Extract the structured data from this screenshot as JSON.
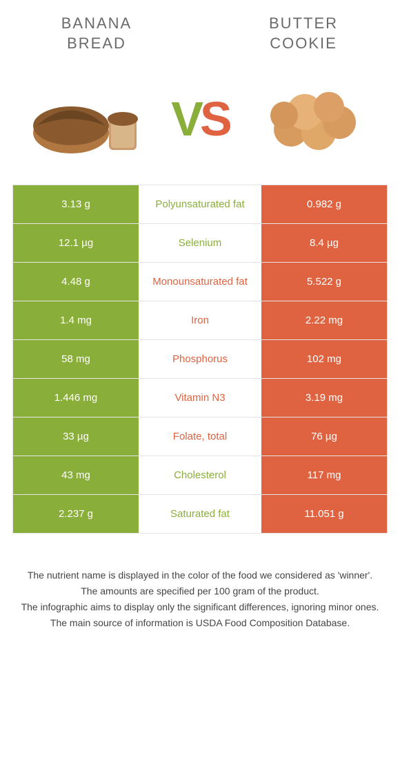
{
  "left": {
    "title_line1": "BANANA",
    "title_line2": "BREAD",
    "color": "#8aae3a"
  },
  "right": {
    "title_line1": "BUTTER",
    "title_line2": "COOKIE",
    "color": "#df6340"
  },
  "vs": {
    "v": "V",
    "s": "S"
  },
  "rows": [
    {
      "left": "3.13 g",
      "label": "Polyunsaturated fat",
      "right": "0.982 g",
      "winner": "left"
    },
    {
      "left": "12.1 µg",
      "label": "Selenium",
      "right": "8.4 µg",
      "winner": "left"
    },
    {
      "left": "4.48 g",
      "label": "Monounsaturated fat",
      "right": "5.522 g",
      "winner": "right"
    },
    {
      "left": "1.4 mg",
      "label": "Iron",
      "right": "2.22 mg",
      "winner": "right"
    },
    {
      "left": "58 mg",
      "label": "Phosphorus",
      "right": "102 mg",
      "winner": "right"
    },
    {
      "left": "1.446 mg",
      "label": "Vitamin N3",
      "right": "3.19 mg",
      "winner": "right"
    },
    {
      "left": "33 µg",
      "label": "Folate, total",
      "right": "76 µg",
      "winner": "right"
    },
    {
      "left": "43 mg",
      "label": "Cholesterol",
      "right": "117 mg",
      "winner": "left"
    },
    {
      "left": "2.237 g",
      "label": "Saturated fat",
      "right": "11.051 g",
      "winner": "left"
    }
  ],
  "footer": [
    "The nutrient name is displayed in the color of the food we considered as 'winner'.",
    "The amounts are specified per 100 gram of the product.",
    "The infographic aims to display only the significant differences, ignoring minor ones.",
    "The main source of information is USDA Food Composition Database."
  ]
}
